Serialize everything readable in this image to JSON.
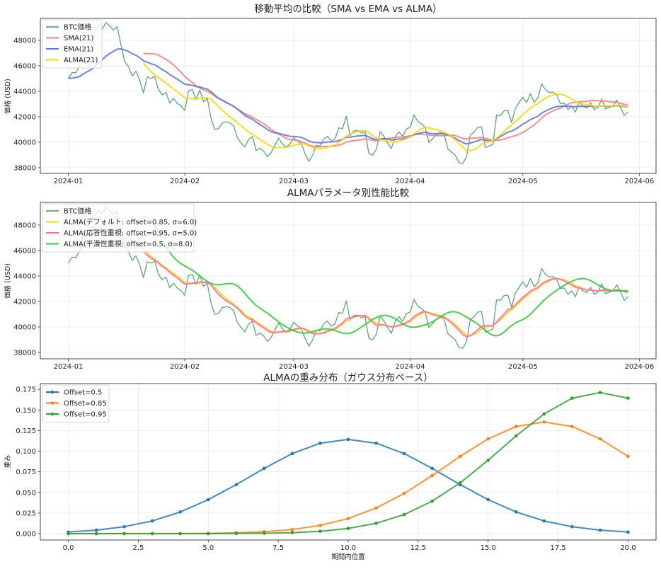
{
  "btc_price": {
    "date_start": "2024-01-01",
    "date_end": "2024-05-29",
    "frequency": "daily",
    "values": [
      45000,
      45470,
      45450,
      45990,
      47370,
      47190,
      47190,
      48570,
      49180,
      48850,
      49400,
      49130,
      48810,
      49070,
      47650,
      46320,
      45930,
      45210,
      45580,
      44880,
      43870,
      45120,
      45010,
      45160,
      44110,
      43720,
      43900,
      43070,
      43440,
      43040,
      42850,
      42480,
      44050,
      44130,
      43350,
      44090,
      43180,
      43440,
      41840,
      40990,
      41080,
      41520,
      41600,
      41520,
      41280,
      40360,
      39940,
      39620,
      40230,
      40450,
      39350,
      39530,
      39290,
      38850,
      39200,
      39770,
      40320,
      39860,
      39620,
      39840,
      40360,
      40100,
      39900,
      39100,
      38500,
      38950,
      39750,
      39700,
      40250,
      40460,
      40060,
      40240,
      41130,
      41070,
      42040,
      40520,
      40890,
      40930,
      40720,
      40800,
      39100,
      38980,
      39440,
      40830,
      40480,
      39930,
      39500,
      40430,
      40800,
      40460,
      41040,
      41170,
      42150,
      41630,
      41440,
      41170,
      39960,
      40280,
      40610,
      40760,
      40650,
      39500,
      39220,
      38980,
      38390,
      38330,
      38850,
      40570,
      40800,
      41170,
      41200,
      39590,
      39690,
      39830,
      42130,
      42090,
      42460,
      42500,
      41540,
      42650,
      43110,
      43540,
      43110,
      43800,
      43150,
      43480,
      44590,
      44130,
      43910,
      43940,
      43720,
      43020,
      43060,
      42560,
      42830,
      42370,
      43170,
      42830,
      42690,
      43110,
      42560,
      42740,
      43390,
      42610,
      42740,
      42830,
      43300,
      42740,
      42090,
      42370
    ]
  },
  "chart_data": [
    {
      "type": "line",
      "title": "移動平均の比較（SMA vs EMA vs ALMA）",
      "xlabel": "",
      "ylabel": "価格 (USD)",
      "ylim": [
        37550,
        49720
      ],
      "xticks": [
        "2024-01",
        "2024-02",
        "2024-03",
        "2024-04",
        "2024-05",
        "2024-06"
      ],
      "yticks": [
        38000,
        40000,
        42000,
        44000,
        46000,
        48000
      ],
      "grid": true,
      "legend": "upper-left",
      "series": [
        {
          "name": "BTC価格",
          "source": "btc_price",
          "color": "#3d9660"
        },
        {
          "name": "SMA(21)",
          "method": "sma",
          "period": 21,
          "color": "#ff7f7f"
        },
        {
          "name": "EMA(21)",
          "method": "ema",
          "period": 21,
          "color": "#5a78e6"
        },
        {
          "name": "ALMA(21)",
          "method": "alma",
          "period": 21,
          "offset": 0.85,
          "sigma": 6.0,
          "color": "#ffd700"
        }
      ]
    },
    {
      "type": "line",
      "title": "ALMAパラメータ別性能比較",
      "xlabel": "",
      "ylabel": "価格 (USD)",
      "ylim": [
        37500,
        49770
      ],
      "xticks": [
        "2024-01",
        "2024-02",
        "2024-03",
        "2024-04",
        "2024-05",
        "2024-06"
      ],
      "yticks": [
        38000,
        40000,
        42000,
        44000,
        46000,
        48000
      ],
      "grid": true,
      "legend": "upper-left",
      "series": [
        {
          "name": "BTC価格",
          "source": "btc_price",
          "color": "#3d9660"
        },
        {
          "name": "ALMA(デフォルト: offset=0.85, σ=6.0)",
          "method": "alma",
          "period": 21,
          "offset": 0.85,
          "sigma": 6.0,
          "color": "#ffd700"
        },
        {
          "name": "ALMA(応答性重視: offset=0.95, σ=5.0)",
          "method": "alma",
          "period": 21,
          "offset": 0.95,
          "sigma": 5.0,
          "color": "#ff69b4"
        },
        {
          "name": "ALMA(平滑性重視: offset=0.5, σ=8.0)",
          "method": "alma",
          "period": 21,
          "offset": 0.5,
          "sigma": 8.0,
          "color": "#32cd32"
        }
      ]
    },
    {
      "type": "line",
      "title": "ALMAの重み分布（ガウス分布ベース）",
      "xlabel": "期間内位置",
      "ylabel": "重み",
      "xlim": [
        -1,
        21
      ],
      "ylim": [
        -0.0077,
        0.182
      ],
      "xticks": [
        0.0,
        2.5,
        5.0,
        7.5,
        10.0,
        12.5,
        15.0,
        17.5,
        20.0
      ],
      "yticks": [
        0.0,
        0.025,
        0.05,
        0.075,
        0.1,
        0.125,
        0.15,
        0.175
      ],
      "grid": true,
      "legend": "upper-left",
      "x": [
        0,
        1,
        2,
        3,
        4,
        5,
        6,
        7,
        8,
        9,
        10,
        11,
        12,
        13,
        14,
        15,
        16,
        17,
        18,
        19,
        20
      ],
      "series": [
        {
          "name": "Offset=0.5",
          "color": "#1f77b4",
          "values": [
            0.0019,
            0.0042,
            0.0084,
            0.0154,
            0.0263,
            0.0412,
            0.0594,
            0.0792,
            0.0971,
            0.1097,
            0.1143,
            0.1097,
            0.0971,
            0.0792,
            0.0594,
            0.0412,
            0.0263,
            0.0154,
            0.0084,
            0.0042,
            0.0019
          ]
        },
        {
          "name": "Offset=0.85",
          "color": "#ff7f0e",
          "values": [
            1e-06,
            4e-06,
            1.4e-05,
            4.5e-05,
            0.000137,
            0.000379,
            0.00097,
            0.00229,
            0.00497,
            0.00994,
            0.0183,
            0.0311,
            0.0487,
            0.0704,
            0.0938,
            0.1149,
            0.13,
            0.1354,
            0.13,
            0.1149,
            0.0938
          ]
        },
        {
          "name": "Offset=0.95",
          "color": "#2ca02c",
          "values": [
            1e-07,
            3e-07,
            1e-06,
            5e-06,
            1.8e-05,
            5.7e-05,
            0.000172,
            0.00049,
            0.00123,
            0.0029,
            0.00628,
            0.01256,
            0.0231,
            0.0394,
            0.0616,
            0.089,
            0.1186,
            0.1452,
            0.1643,
            0.1711,
            0.1643
          ]
        }
      ]
    }
  ]
}
